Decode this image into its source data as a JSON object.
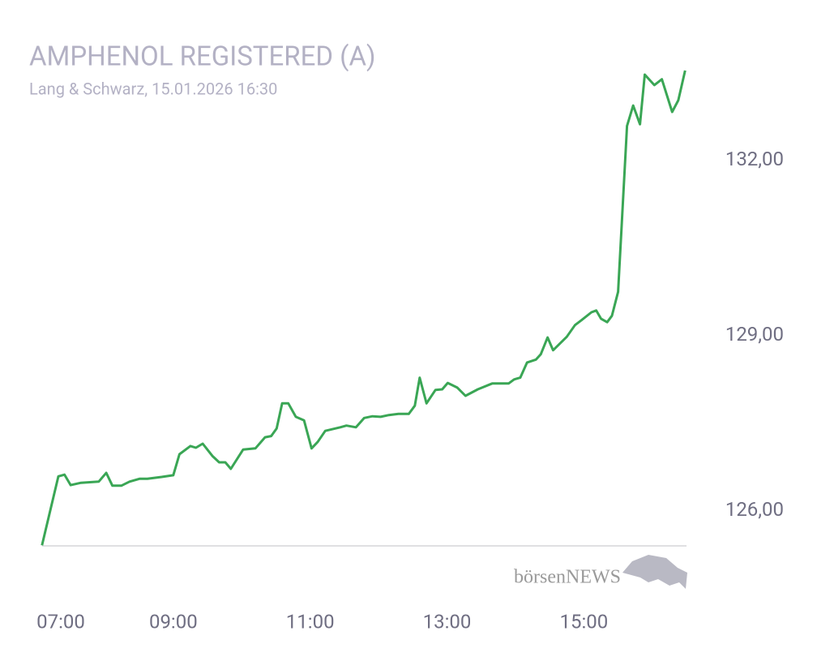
{
  "chart_data": {
    "type": "line",
    "title": "AMPHENOL REGISTERED (A)",
    "subtitle": "Lang & Schwarz, 15.01.2026 16:30",
    "watermark": "börsenNEWS",
    "color": "#3aa655",
    "x": [
      7.08,
      7.32,
      7.41,
      7.5,
      7.65,
      7.91,
      8.02,
      8.11,
      8.24,
      8.36,
      8.51,
      8.62,
      8.83,
      9.0,
      9.09,
      9.25,
      9.33,
      9.43,
      9.57,
      9.67,
      9.76,
      9.84,
      10.02,
      10.2,
      10.34,
      10.43,
      10.51,
      10.59,
      10.68,
      10.79,
      10.91,
      11.02,
      11.11,
      11.22,
      11.44,
      11.53,
      11.67,
      11.79,
      11.91,
      12.03,
      12.15,
      12.29,
      12.44,
      12.53,
      12.6,
      12.7,
      12.83,
      12.93,
      13.01,
      13.15,
      13.27,
      13.45,
      13.66,
      13.9,
      13.98,
      14.07,
      14.17,
      14.3,
      14.37,
      14.47,
      14.55,
      14.75,
      14.87,
      14.96,
      15.11,
      15.18,
      15.25,
      15.34,
      15.41,
      15.5,
      15.63,
      15.72,
      15.82,
      15.89,
      16.03,
      16.14,
      16.29,
      16.38,
      16.48
    ],
    "values": [
      125.41,
      126.59,
      126.62,
      126.44,
      126.48,
      126.5,
      126.65,
      126.43,
      126.43,
      126.5,
      126.55,
      126.55,
      126.58,
      126.61,
      126.97,
      127.11,
      127.08,
      127.15,
      126.94,
      126.83,
      126.83,
      126.72,
      127.05,
      127.07,
      127.26,
      127.28,
      127.41,
      127.84,
      127.84,
      127.61,
      127.55,
      127.07,
      127.18,
      127.37,
      127.43,
      127.46,
      127.43,
      127.59,
      127.62,
      127.61,
      127.64,
      127.66,
      127.66,
      127.8,
      128.28,
      127.84,
      128.07,
      128.08,
      128.19,
      128.11,
      127.97,
      128.08,
      128.18,
      128.18,
      128.25,
      128.28,
      128.54,
      128.59,
      128.68,
      128.97,
      128.75,
      128.98,
      129.18,
      129.26,
      129.4,
      129.43,
      129.29,
      129.23,
      129.34,
      129.75,
      132.59,
      132.94,
      132.62,
      133.47,
      133.29,
      133.39,
      132.83,
      133.03,
      133.54
    ],
    "xlim": [
      7,
      16.5
    ],
    "xticks": [
      {
        "value": 7,
        "label": "07:00"
      },
      {
        "value": 9,
        "label": "09:00"
      },
      {
        "value": 11,
        "label": "11:00"
      },
      {
        "value": 13,
        "label": "13:00"
      },
      {
        "value": 15,
        "label": "15:00"
      }
    ],
    "ylim": [
      125.4,
      133.6
    ],
    "yticks": [
      {
        "value": 126,
        "label": "126,00"
      },
      {
        "value": 129,
        "label": "129,00"
      },
      {
        "value": 132,
        "label": "132,00"
      }
    ]
  }
}
